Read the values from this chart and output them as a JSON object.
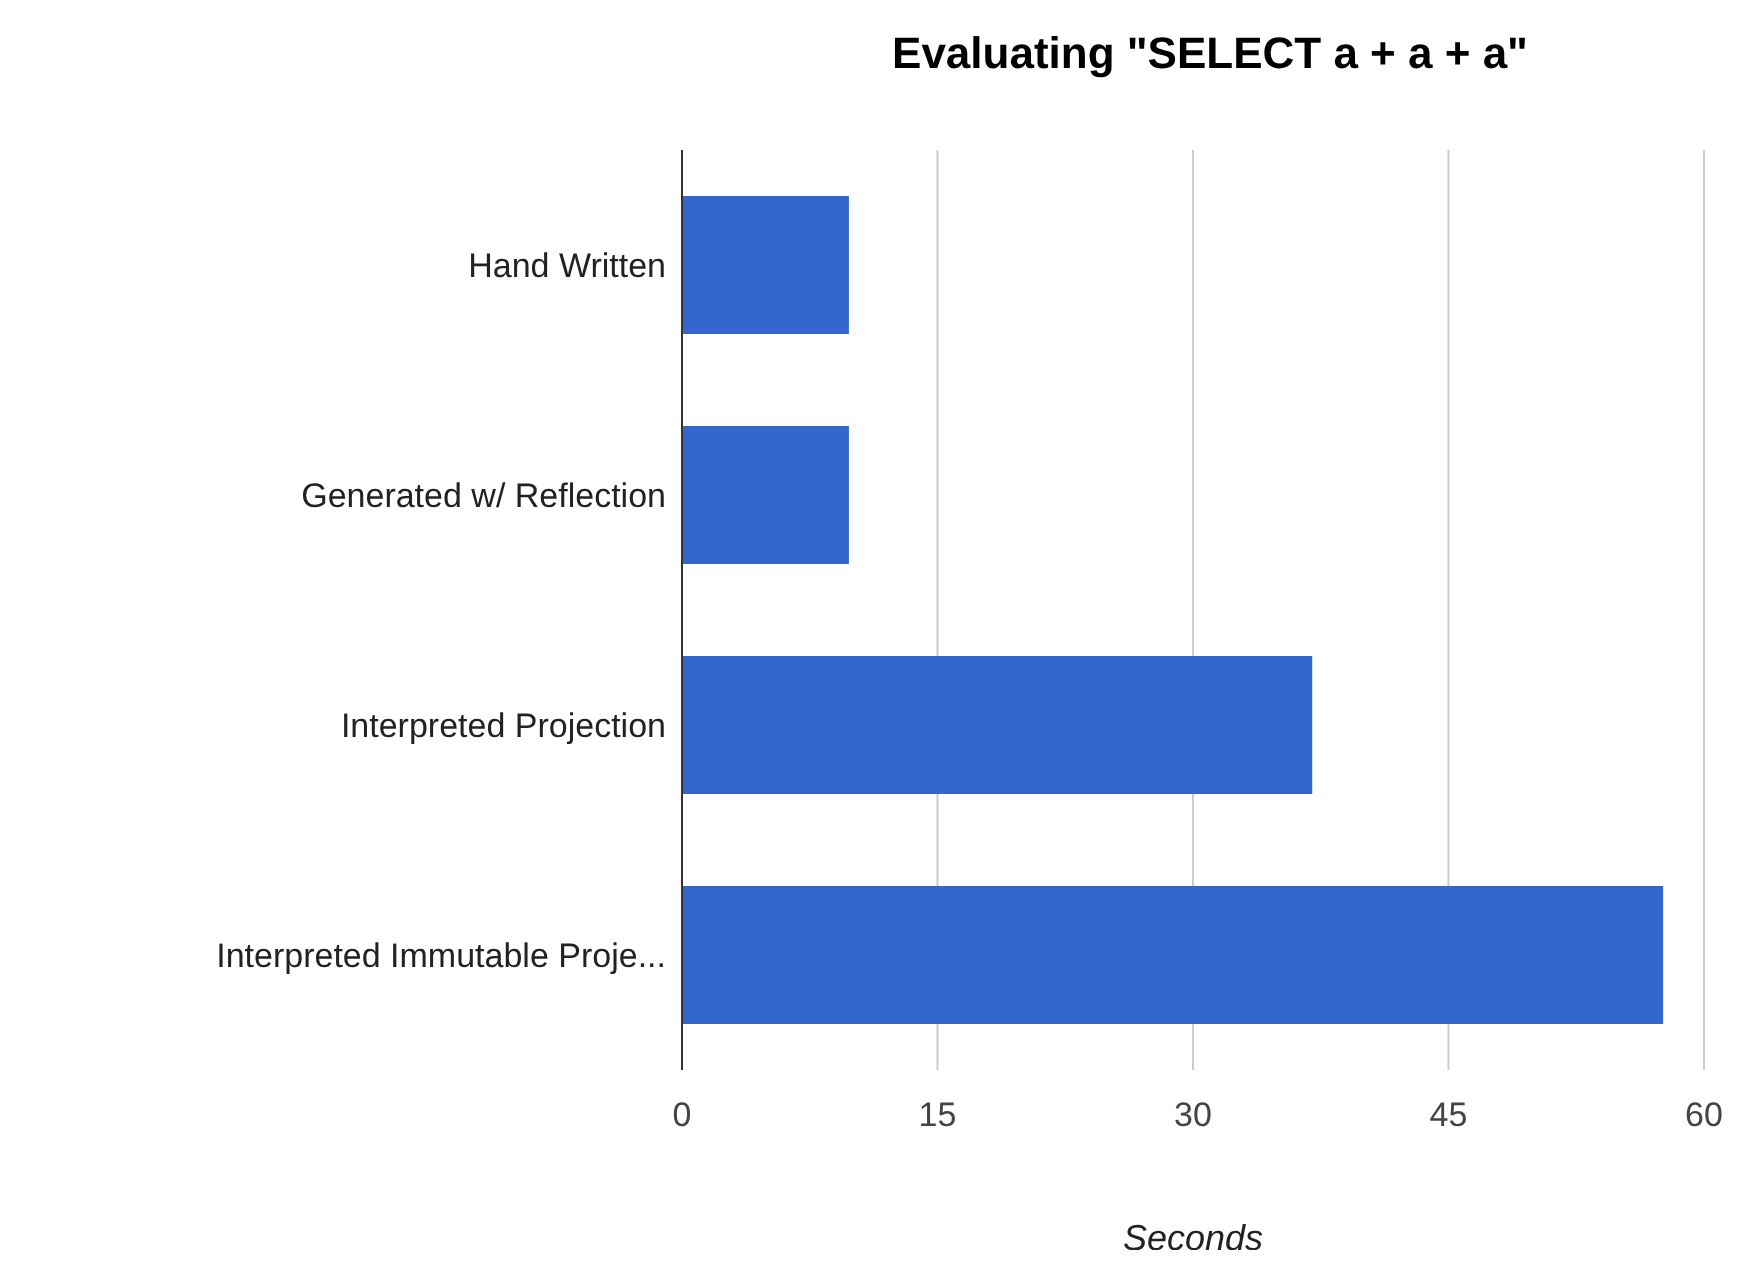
{
  "chart_data": {
    "type": "bar",
    "orientation": "horizontal",
    "title": "Evaluating \"SELECT a + a + a\"",
    "xlabel": "Seconds",
    "categories": [
      "Hand Written",
      "Generated w/ Reflection",
      "Interpreted Projection",
      "Interpreted Immutable Proje..."
    ],
    "values": [
      9.8,
      9.8,
      37,
      57.6
    ],
    "color": "#3366cc",
    "xlim": [
      0,
      60
    ],
    "xticks": [
      0,
      15,
      30,
      45,
      60
    ],
    "grid": "x",
    "legend": false
  }
}
